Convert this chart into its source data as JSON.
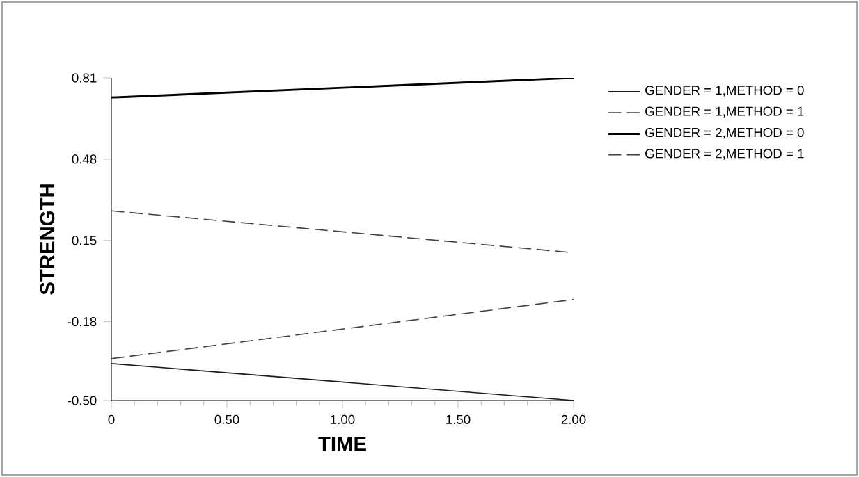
{
  "chart_data": {
    "type": "line",
    "xlabel": "TIME",
    "ylabel": "STRENGTH",
    "x": [
      0,
      2
    ],
    "series": [
      {
        "name": "GENDER = 1,METHOD = 0",
        "color": "#1a1a1a",
        "line_style": "solid",
        "values": [
          -0.35,
          -0.5
        ]
      },
      {
        "name": "GENDER = 1,METHOD = 1",
        "color": "#404040",
        "line_style": "dashed",
        "values": [
          -0.33,
          -0.09
        ]
      },
      {
        "name": "GENDER = 2,METHOD = 0",
        "color": "#000000",
        "line_style": "solid",
        "values": [
          0.73,
          0.81
        ]
      },
      {
        "name": "GENDER = 2,METHOD = 1",
        "color": "#404040",
        "line_style": "dashed",
        "values": [
          0.27,
          0.1
        ]
      }
    ],
    "xlim": [
      0,
      2
    ],
    "ylim": [
      -0.5,
      0.81
    ],
    "xticks": [
      0,
      {
        "value": 0.5,
        "label": "0.50"
      },
      {
        "value": 1,
        "label": "1.00"
      },
      {
        "value": 1.5,
        "label": "1.50"
      },
      {
        "value": 2,
        "label": "2.00"
      }
    ],
    "yticks": [
      {
        "value": -0.5,
        "label": "-0.50"
      },
      -0.18,
      0.15,
      0.48,
      0.81
    ],
    "legend": "right",
    "grid": false,
    "marker": "none"
  }
}
